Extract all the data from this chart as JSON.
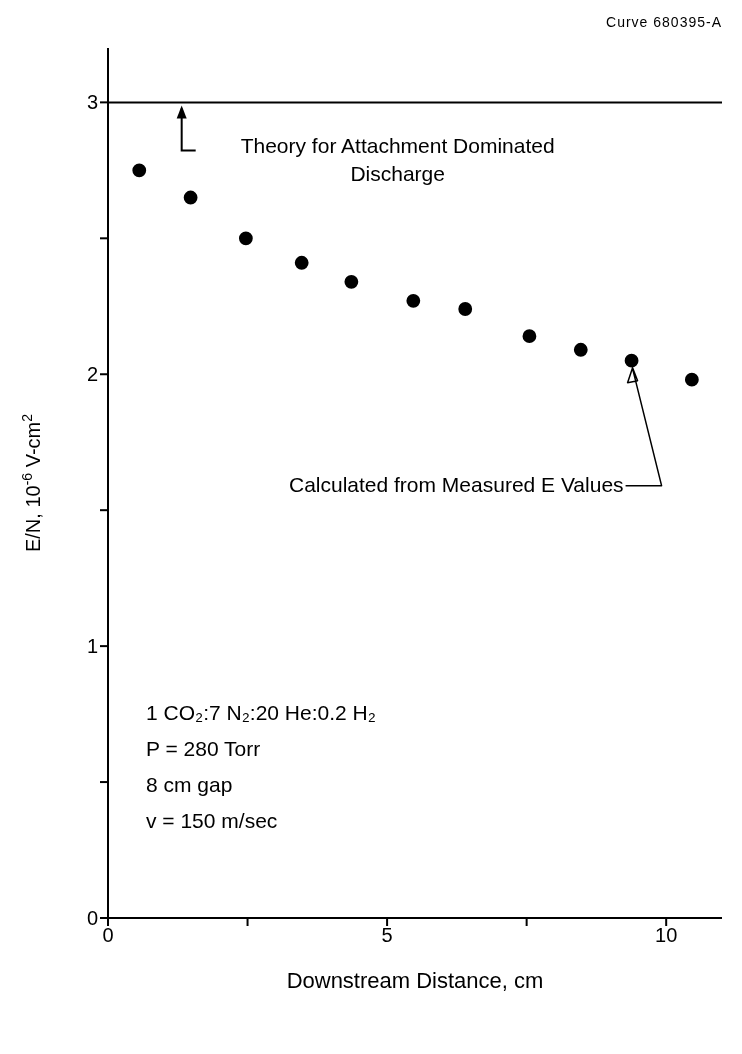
{
  "chart_data": {
    "type": "scatter",
    "xlabel": "Downstream Distance, cm",
    "ylabel": "E/N, 10$^{-6}$ V-cm$^{2}$",
    "x": [
      0.56,
      1.48,
      2.47,
      3.47,
      4.36,
      5.47,
      6.4,
      7.55,
      8.47,
      9.38,
      10.46
    ],
    "values": [
      2.75,
      2.65,
      2.5,
      2.41,
      2.34,
      2.27,
      2.24,
      2.14,
      2.09,
      2.05,
      1.98
    ],
    "color": "#000000",
    "marker": "circle",
    "grid": false,
    "xlim": [
      0,
      11
    ],
    "xticks": [
      0,
      {
        "value": 2.5,
        "label": null
      },
      5,
      {
        "value": 7.5,
        "label": null
      },
      10
    ],
    "ylim": [
      0,
      3.2
    ],
    "yticks": [
      0,
      {
        "value": 0.5,
        "label": null
      },
      1,
      {
        "value": 1.5,
        "label": null
      },
      2,
      {
        "value": 2.5,
        "label": null
      },
      3
    ],
    "ref_lines": [
      {
        "axis": "y",
        "value": 3,
        "label": "Theory for Attachment Dominated Discharge",
        "color": "#000000",
        "line_style": "solid"
      }
    ],
    "annotations": [
      "Curve 680395-A",
      {
        "text": "Calculated from Measured E Values",
        "x": 9.38,
        "y": 2.05
      },
      "1 CO₂:7 N₂:20 He:0.2 H₂",
      "P = 280 Torr",
      "8 cm gap",
      "v = 150 m/sec"
    ]
  }
}
